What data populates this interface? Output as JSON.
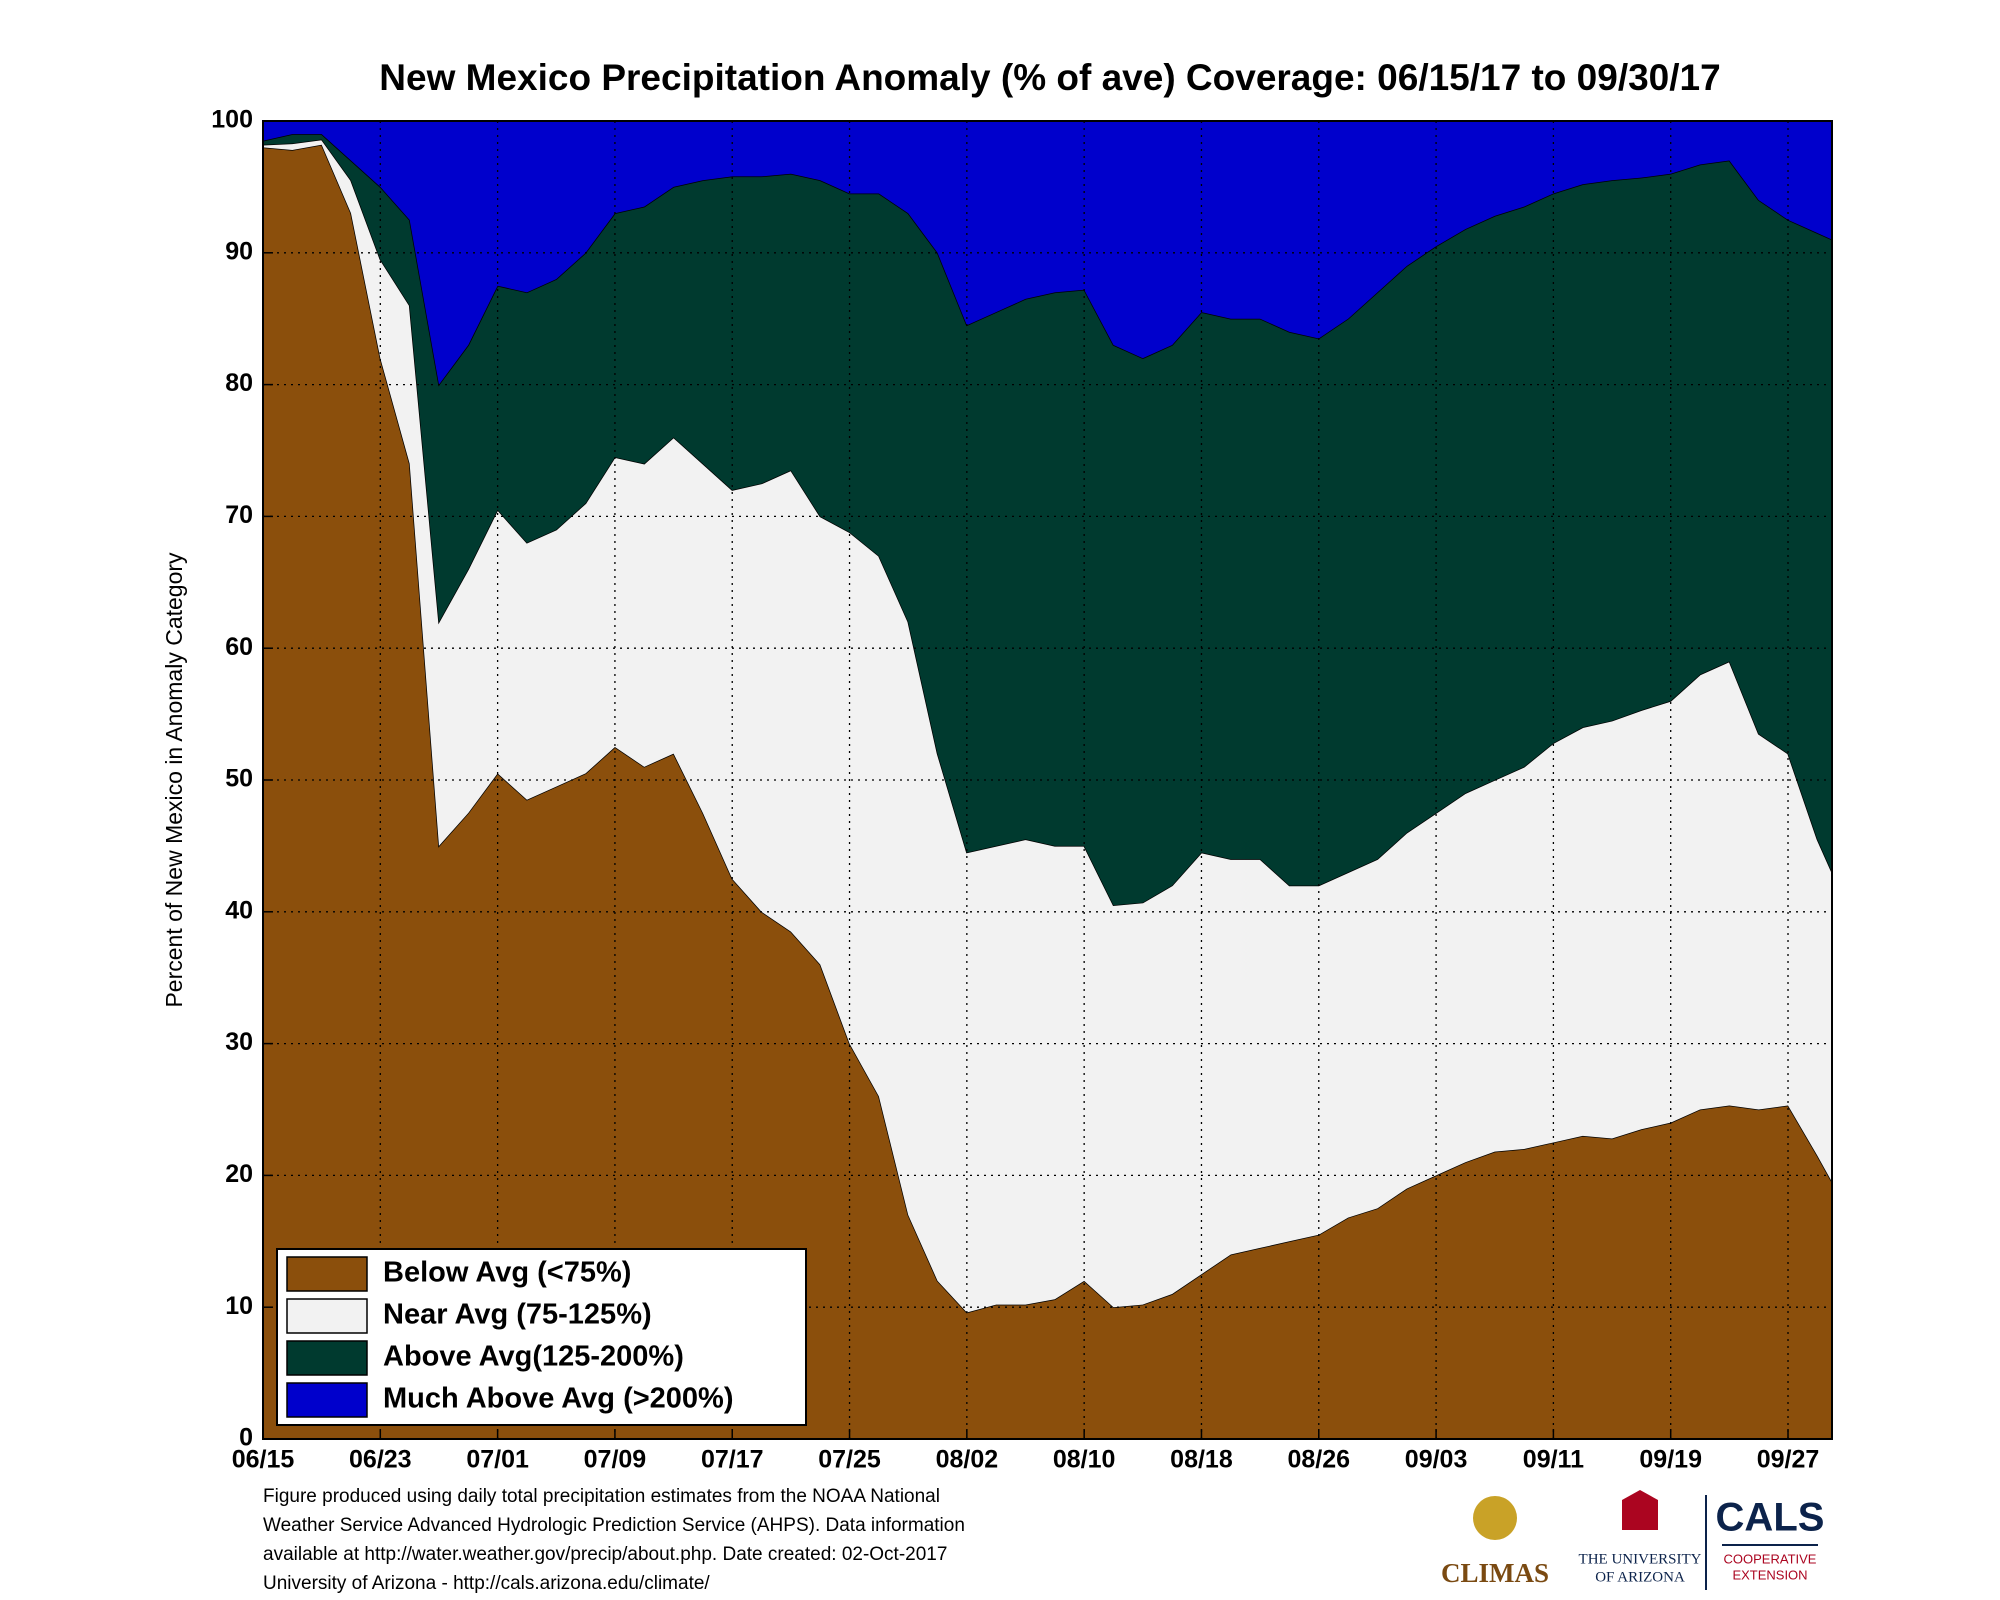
{
  "chart_data": {
    "type": "stacked_area",
    "title": "New Mexico Precipitation Anomaly (% of ave) Coverage: 06/15/17 to 09/30/17",
    "ylabel": "Percent of New Mexico in Anomaly Category",
    "x": [
      "06/15",
      "06/17",
      "06/19",
      "06/21",
      "06/23",
      "06/25",
      "06/27",
      "06/29",
      "07/01",
      "07/03",
      "07/05",
      "07/07",
      "07/09",
      "07/11",
      "07/13",
      "07/15",
      "07/17",
      "07/19",
      "07/21",
      "07/23",
      "07/25",
      "07/27",
      "07/29",
      "07/31",
      "08/02",
      "08/04",
      "08/06",
      "08/08",
      "08/10",
      "08/12",
      "08/14",
      "08/16",
      "08/18",
      "08/20",
      "08/22",
      "08/24",
      "08/26",
      "08/28",
      "08/30",
      "09/01",
      "09/03",
      "09/05",
      "09/07",
      "09/09",
      "09/11",
      "09/13",
      "09/15",
      "09/17",
      "09/19",
      "09/21",
      "09/23",
      "09/25",
      "09/27",
      "09/29",
      "09/30"
    ],
    "series": [
      {
        "name": "Below Avg (<75%)",
        "color": "#8b4f0c",
        "values": [
          98,
          97.8,
          98.2,
          93,
          82,
          74,
          45,
          47.5,
          50.5,
          48.5,
          49.5,
          50.5,
          52.5,
          51,
          52,
          47.5,
          42.5,
          40,
          38.5,
          36,
          30,
          26,
          17,
          12,
          9.6,
          10.2,
          10.2,
          10.6,
          12,
          10,
          10.2,
          11,
          12.5,
          14,
          14.5,
          15,
          15.5,
          16.8,
          17.5,
          19,
          20,
          21,
          21.8,
          22,
          22.5,
          23,
          22.8,
          23.5,
          24,
          25,
          25.3,
          25,
          25.3,
          21.5,
          19.5
        ]
      },
      {
        "name": "Near Avg (75-125%)",
        "color": "#f2f2f2",
        "values": [
          0.2,
          0.5,
          0.4,
          2.5,
          7.5,
          12,
          17,
          18.5,
          20,
          19.5,
          19.5,
          20.5,
          22,
          23,
          24,
          26.5,
          29.5,
          32.5,
          35,
          34,
          38.8,
          41,
          45,
          40,
          34.9,
          34.8,
          35.3,
          34.4,
          33,
          30.5,
          30.5,
          31,
          32,
          30,
          29.5,
          27,
          26.5,
          26.2,
          26.5,
          27,
          27.5,
          28,
          28.2,
          29,
          30.3,
          31,
          31.7,
          31.8,
          32,
          33,
          33.7,
          28.5,
          26.7,
          24,
          23.5
        ]
      },
      {
        "name": "Above Avg(125-200%)",
        "color": "#003a2f",
        "values": [
          0.3,
          0.7,
          0.4,
          1.5,
          5.5,
          6.5,
          18,
          17,
          17,
          19,
          19,
          19,
          18.5,
          19.5,
          19,
          21.5,
          23.8,
          23.3,
          22.5,
          25.5,
          25.7,
          27.5,
          31,
          38,
          40,
          40.5,
          41,
          42,
          42.2,
          42.5,
          41.3,
          41,
          41,
          41,
          41,
          42,
          41.5,
          42,
          43,
          43,
          43,
          42.8,
          42.8,
          42.5,
          41.7,
          41.2,
          41,
          40.4,
          40,
          38.7,
          38,
          40.5,
          40.5,
          46,
          48
        ]
      },
      {
        "name": "Much Above Avg (>200%)",
        "color": "#0000cc",
        "values": [
          1.5,
          1,
          1,
          3,
          5,
          7.5,
          20,
          17,
          12.5,
          13,
          12,
          10,
          7,
          6.5,
          5,
          4.5,
          4.2,
          4.2,
          4,
          4.5,
          5.5,
          5.5,
          7,
          10,
          15.5,
          14.5,
          13.5,
          13,
          12.8,
          17,
          18,
          17,
          14.5,
          15,
          15,
          16,
          16.5,
          15,
          13,
          11,
          9.5,
          8.2,
          7.2,
          6.5,
          5.5,
          4.8,
          4.5,
          4.3,
          4,
          3.3,
          3,
          6,
          7.5,
          8.5,
          9
        ]
      }
    ],
    "xlim": [
      "06/15",
      "09/30"
    ],
    "xticks": [
      "06/15",
      "06/23",
      "07/01",
      "07/09",
      "07/17",
      "07/25",
      "08/02",
      "08/10",
      "08/18",
      "08/26",
      "09/03",
      "09/11",
      "09/19",
      "09/27"
    ],
    "ylim": [
      0,
      100
    ],
    "yticks": [
      0,
      10,
      20,
      30,
      40,
      50,
      60,
      70,
      80,
      90,
      100
    ],
    "grid": true,
    "legend": "lower left",
    "footnote": [
      "Figure produced using daily total precipitation estimates from the NOAA National",
      "Weather Service Advanced Hydrologic Prediction Service (AHPS). Data information",
      "available at http://water.weather.gov/precip/about.php. Date created: 02-Oct-2017",
      "University of Arizona - http://cals.arizona.edu/climate/"
    ],
    "logos": [
      "CLIMAS",
      "THE UNIVERSITY",
      "OF ARIZONA",
      "CALS",
      "COOPERATIVE",
      "EXTENSION"
    ]
  }
}
